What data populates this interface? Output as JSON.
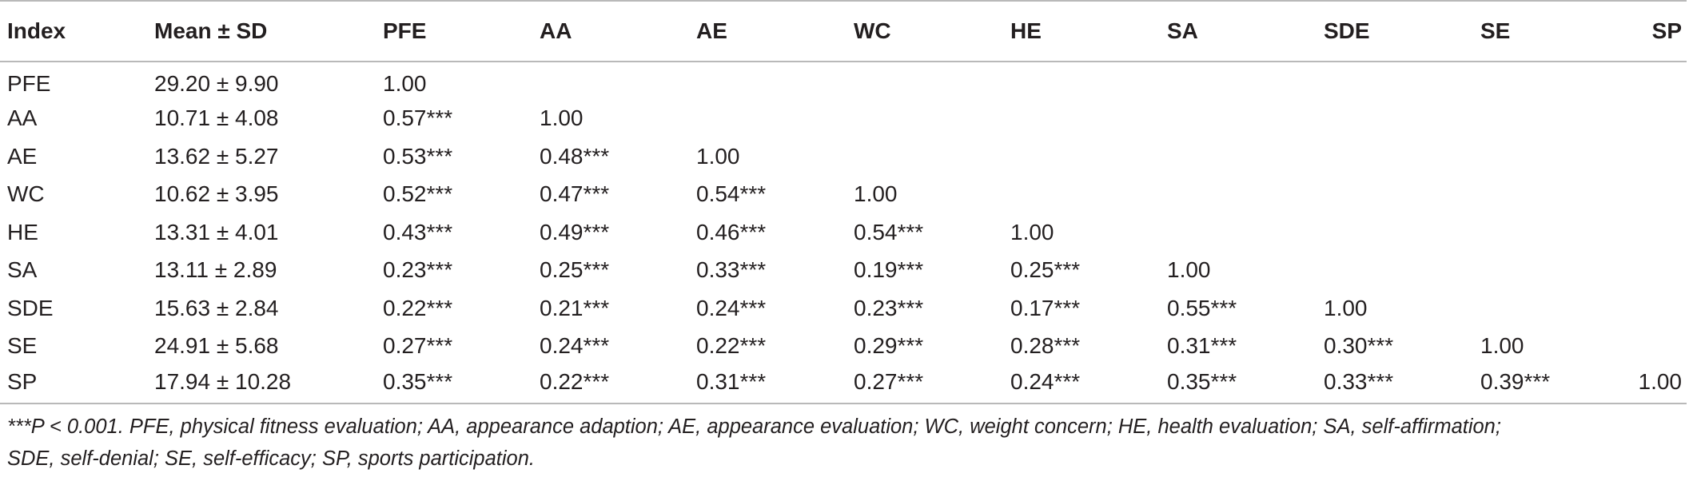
{
  "table": {
    "headers": [
      "Index",
      "Mean ± SD",
      "PFE",
      "AA",
      "AE",
      "WC",
      "HE",
      "SA",
      "SDE",
      "SE",
      "SP"
    ],
    "rows": [
      [
        "PFE",
        "29.20 ± 9.90",
        "1.00",
        "",
        "",
        "",
        "",
        "",
        "",
        "",
        ""
      ],
      [
        "AA",
        "10.71 ± 4.08",
        "0.57***",
        "1.00",
        "",
        "",
        "",
        "",
        "",
        "",
        ""
      ],
      [
        "AE",
        "13.62 ± 5.27",
        "0.53***",
        "0.48***",
        "1.00",
        "",
        "",
        "",
        "",
        "",
        ""
      ],
      [
        "WC",
        "10.62 ± 3.95",
        "0.52***",
        "0.47***",
        "0.54***",
        "1.00",
        "",
        "",
        "",
        "",
        ""
      ],
      [
        "HE",
        "13.31 ± 4.01",
        "0.43***",
        "0.49***",
        "0.46***",
        "0.54***",
        "1.00",
        "",
        "",
        "",
        ""
      ],
      [
        "SA",
        "13.11 ± 2.89",
        "0.23***",
        "0.25***",
        "0.33***",
        "0.19***",
        "0.25***",
        "1.00",
        "",
        "",
        ""
      ],
      [
        "SDE",
        "15.63 ± 2.84",
        "0.22***",
        "0.21***",
        "0.24***",
        "0.23***",
        "0.17***",
        "0.55***",
        "1.00",
        "",
        ""
      ],
      [
        "SE",
        "24.91 ± 5.68",
        "0.27***",
        "0.24***",
        "0.22***",
        "0.29***",
        "0.28***",
        "0.31***",
        "0.30***",
        "1.00",
        ""
      ],
      [
        "SP",
        "17.94 ± 10.28",
        "0.35***",
        "0.22***",
        "0.31***",
        "0.27***",
        "0.24***",
        "0.35***",
        "0.33***",
        "0.39***",
        "1.00"
      ]
    ]
  },
  "footnote": {
    "line1": "***P < 0.001. PFE, physical fitness evaluation; AA, appearance adaption; AE, appearance evaluation; WC, weight concern; HE, health evaluation; SA, self-affirmation;",
    "line2": "SDE, self-denial; SE, self-efficacy; SP, sports participation."
  }
}
